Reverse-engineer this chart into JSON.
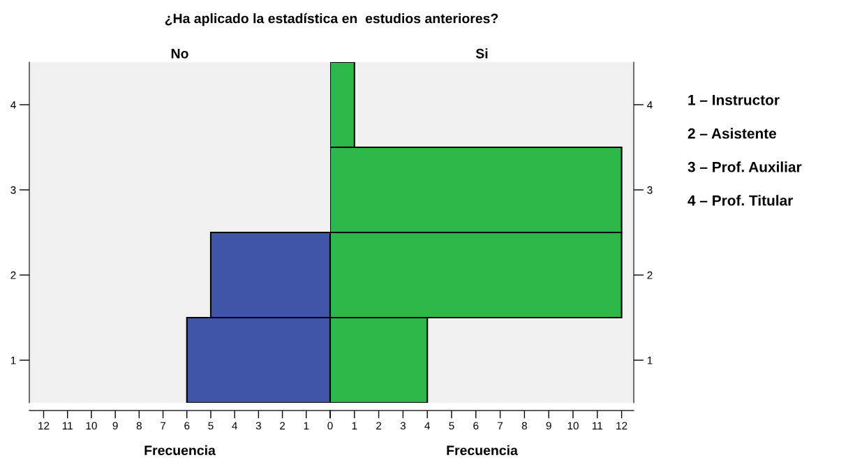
{
  "chart_data": [
    {
      "type": "other",
      "title": "¿Ha aplicado la estadística en  estudios anteriores?"
    },
    {
      "type": "bar",
      "orientation": "horizontal",
      "subtitle": "No",
      "xlabel": "Frecuencia",
      "categories": [
        "4",
        "3",
        "2",
        "1"
      ],
      "values": [
        null,
        null,
        5,
        6
      ],
      "color": "#3f56a8",
      "xlim": [
        12.6,
        0
      ],
      "xticks": [
        12,
        11,
        10,
        9,
        8,
        7,
        6,
        5,
        4,
        3,
        2,
        1,
        0
      ],
      "grid": false
    },
    {
      "type": "bar",
      "orientation": "horizontal",
      "subtitle": "Si",
      "xlabel": "Frecuencia",
      "categories": [
        "4",
        "3",
        "2",
        "1"
      ],
      "values": [
        1,
        12,
        12,
        4
      ],
      "color": "#2fb84a",
      "xlim": [
        0,
        12.5
      ],
      "xticks": [
        {
          "value": 0,
          "label": null
        },
        1,
        2,
        3,
        4,
        5,
        6,
        7,
        8,
        9,
        10,
        11,
        12
      ],
      "grid": false,
      "annotations": [
        "1 – Instructor",
        "2 – Asistente",
        "3 – Prof. Auxiliar",
        "4 – Prof. Titular"
      ]
    }
  ]
}
